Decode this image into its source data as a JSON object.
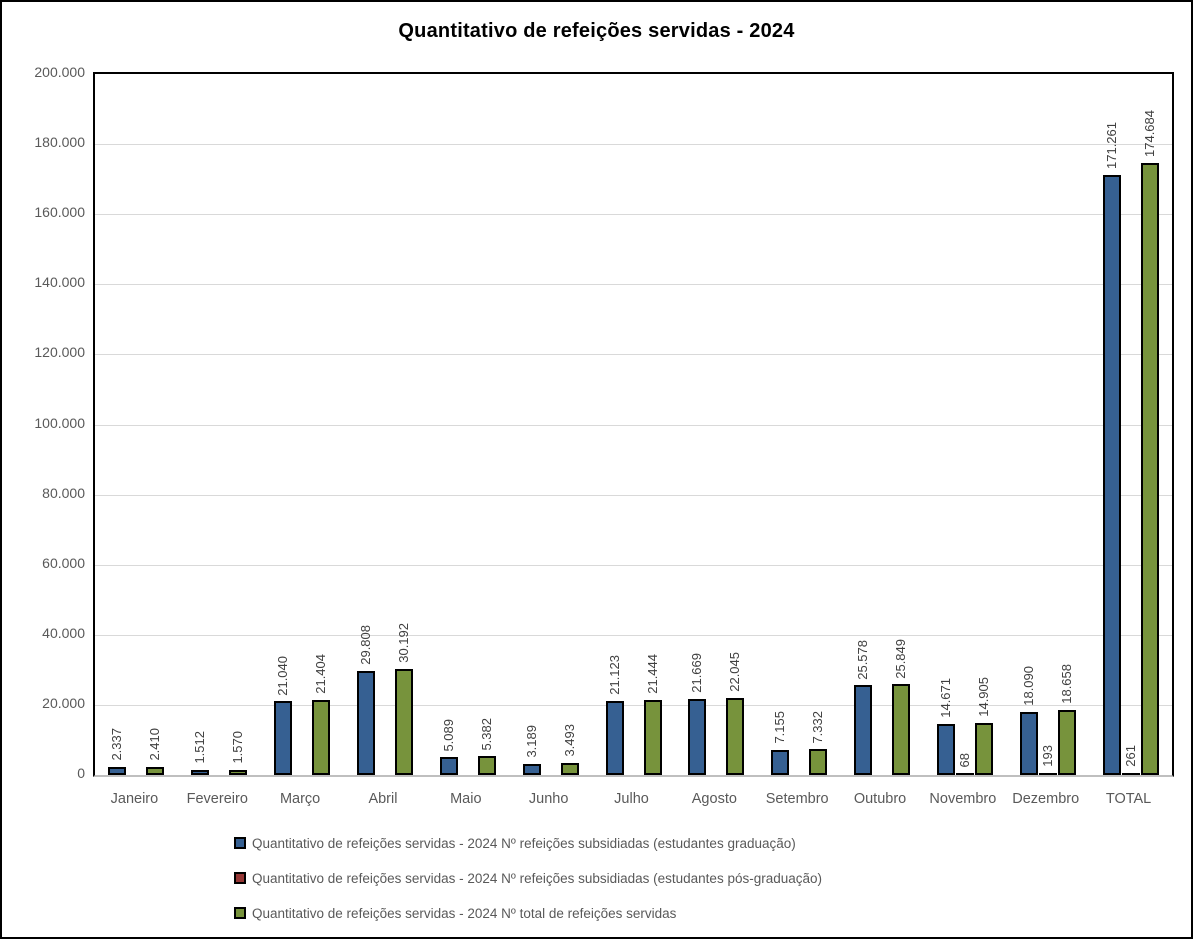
{
  "title": "Quantitativo de refeições servidas - 2024",
  "chart_data": {
    "type": "bar",
    "title": "Quantitativo de refeições servidas - 2024",
    "categories": [
      "Janeiro",
      "Fevereiro",
      "Março",
      "Abril",
      "Maio",
      "Junho",
      "Julho",
      "Agosto",
      "Setembro",
      "Outubro",
      "Novembro",
      "Dezembro",
      "TOTAL"
    ],
    "series": [
      {
        "name": "Quantitativo de refeições servidas - 2024 Nº refeições subsidiadas (estudantes graduação)",
        "color": "#366092",
        "values": [
          2337,
          1512,
          21040,
          29808,
          5089,
          3189,
          21123,
          21669,
          7155,
          25578,
          14671,
          18090,
          171261
        ]
      },
      {
        "name": "Quantitativo de refeições servidas - 2024 Nº refeições subsidiadas (estudantes pós-graduação)",
        "color": "#953735",
        "values": [
          0,
          0,
          0,
          0,
          0,
          0,
          0,
          0,
          0,
          0,
          68,
          193,
          261
        ]
      },
      {
        "name": "Quantitativo de refeições servidas - 2024 Nº total de refeições servidas",
        "color": "#77933C",
        "values": [
          2410,
          1570,
          21404,
          30192,
          5382,
          3493,
          21444,
          22045,
          7332,
          25849,
          14905,
          18658,
          174684
        ]
      }
    ],
    "ylim": [
      0,
      200000
    ],
    "ytick_step": 20000,
    "yticks": [
      0,
      20000,
      40000,
      60000,
      80000,
      100000,
      120000,
      140000,
      160000,
      180000,
      200000
    ],
    "grid": true,
    "legend_position": "bottom",
    "number_format": "thousands-dot",
    "bar_label_rotation": 270,
    "colors": {
      "grid": "#d9d9d9",
      "axis_line": "#bfbfbf",
      "plot_border": "#000000",
      "axis_text": "#595959",
      "bar_label_text": "#404040",
      "title_text": "#000000"
    }
  }
}
